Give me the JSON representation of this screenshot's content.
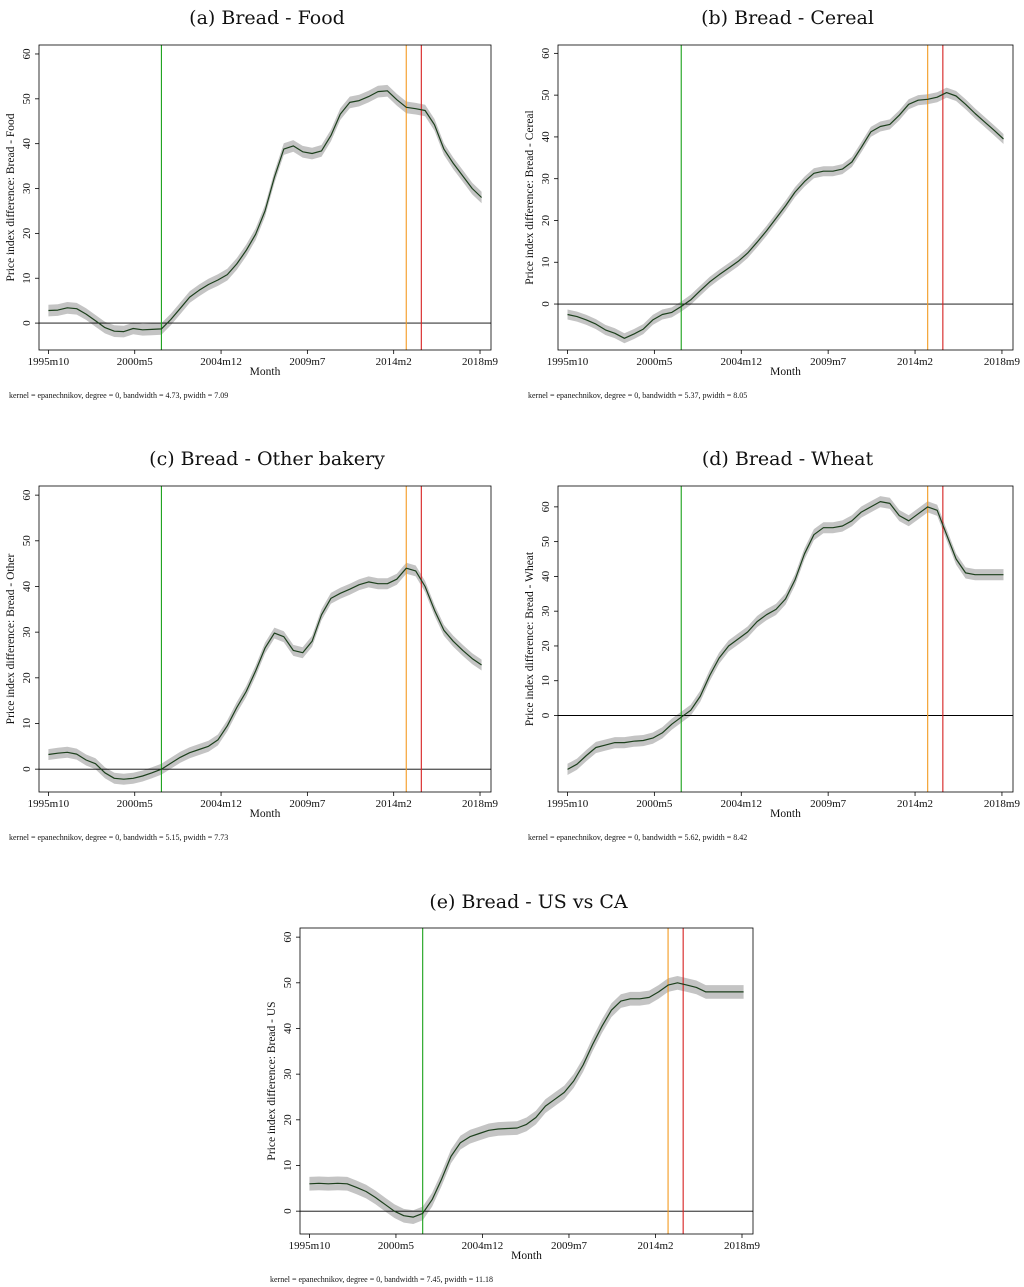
{
  "colors": {
    "green_line": "#1aa11a",
    "orange_line": "#f39a21",
    "red_line": "#d62020",
    "ci_band": "#c4c4c4",
    "series_line": "#1c3f1c"
  },
  "chart_data": [
    {
      "type": "line",
      "title": "(a) Bread - Food",
      "xlabel": "Month",
      "ylabel": "Price index difference: Bread - Food",
      "note": "kernel = epanechnikov, degree = 0, bandwidth = 4.73, pwidth = 7.09",
      "x_tick_labels": [
        "1995m10",
        "2000m5",
        "2004m12",
        "2009m7",
        "2014m2",
        "2018m9"
      ],
      "x_tick_values": [
        1995.75,
        2000.333,
        2004.917,
        2009.5,
        2014.083,
        2018.667
      ],
      "y_ticks": [
        0,
        10,
        20,
        30,
        40,
        50,
        60
      ],
      "xlim": [
        1995.25,
        2019.25
      ],
      "ylim": [
        -6,
        62
      ],
      "vlines": [
        {
          "x": 2001.75,
          "color": "green"
        },
        {
          "x": 2014.75,
          "color": "orange"
        },
        {
          "x": 2015.55,
          "color": "red"
        }
      ],
      "ci_halfwidth": 1.3,
      "x": [
        1995.75,
        1996.25,
        1996.75,
        1997.25,
        1997.75,
        1998.25,
        1998.75,
        1999.25,
        1999.75,
        2000.25,
        2000.75,
        2001.25,
        2001.75,
        2002.25,
        2002.75,
        2003.25,
        2003.75,
        2004.25,
        2004.75,
        2005.25,
        2005.75,
        2006.25,
        2006.75,
        2007.25,
        2007.75,
        2008.25,
        2008.75,
        2009.25,
        2009.75,
        2010.25,
        2010.75,
        2011.25,
        2011.75,
        2012.25,
        2012.75,
        2013.25,
        2013.75,
        2014.25,
        2014.75,
        2015.25,
        2015.75,
        2016.25,
        2016.75,
        2017.25,
        2017.75,
        2018.25,
        2018.75
      ],
      "y": [
        2.8,
        2.9,
        3.4,
        3.2,
        2.0,
        0.5,
        -1.0,
        -1.8,
        -1.9,
        -1.2,
        -1.5,
        -1.4,
        -1.3,
        0.8,
        3.3,
        5.8,
        7.3,
        8.6,
        9.6,
        10.8,
        13.2,
        16.2,
        19.8,
        25.0,
        32.5,
        38.8,
        39.5,
        38.2,
        37.8,
        38.4,
        41.8,
        46.6,
        49.2,
        49.6,
        50.5,
        51.6,
        51.8,
        49.8,
        48.1,
        47.8,
        47.4,
        44.2,
        38.8,
        35.6,
        32.8,
        30.0,
        28.0
      ]
    },
    {
      "type": "line",
      "title": "(b) Bread - Cereal",
      "xlabel": "Month",
      "ylabel": "Price index difference: Bread - Cereal",
      "note": "kernel = epanechnikov, degree = 0, bandwidth = 5.37, pwidth = 8.05",
      "x_tick_labels": [
        "1995m10",
        "2000m5",
        "2004m12",
        "2009m7",
        "2014m2",
        "2018m9"
      ],
      "x_tick_values": [
        1995.75,
        2000.333,
        2004.917,
        2009.5,
        2014.083,
        2018.667
      ],
      "y_ticks": [
        0,
        10,
        20,
        30,
        40,
        50,
        60
      ],
      "xlim": [
        1995.25,
        2019.25
      ],
      "ylim": [
        -11,
        62
      ],
      "vlines": [
        {
          "x": 2001.75,
          "color": "green"
        },
        {
          "x": 2014.75,
          "color": "orange"
        },
        {
          "x": 2015.55,
          "color": "red"
        }
      ],
      "ci_halfwidth": 1.2,
      "x": [
        1995.75,
        1996.25,
        1996.75,
        1997.25,
        1997.75,
        1998.25,
        1998.75,
        1999.25,
        1999.75,
        2000.25,
        2000.75,
        2001.25,
        2001.75,
        2002.25,
        2002.75,
        2003.25,
        2003.75,
        2004.25,
        2004.75,
        2005.25,
        2005.75,
        2006.25,
        2006.75,
        2007.25,
        2007.75,
        2008.25,
        2008.75,
        2009.25,
        2009.75,
        2010.25,
        2010.75,
        2011.25,
        2011.75,
        2012.25,
        2012.75,
        2013.25,
        2013.75,
        2014.25,
        2014.75,
        2015.25,
        2015.75,
        2016.25,
        2016.75,
        2017.25,
        2017.75,
        2018.25,
        2018.75
      ],
      "y": [
        -2.5,
        -3.0,
        -3.8,
        -4.8,
        -6.2,
        -7.0,
        -8.2,
        -7.2,
        -6.0,
        -3.8,
        -2.5,
        -2.0,
        -0.6,
        1.0,
        3.2,
        5.3,
        7.0,
        8.6,
        10.2,
        12.2,
        14.8,
        17.5,
        20.5,
        23.5,
        26.8,
        29.3,
        31.3,
        31.8,
        31.8,
        32.3,
        34.0,
        37.5,
        41.2,
        42.5,
        43.0,
        45.2,
        47.8,
        48.8,
        49.0,
        49.5,
        50.6,
        49.8,
        47.8,
        45.6,
        43.6,
        41.6,
        39.5
      ]
    },
    {
      "type": "line",
      "title": "(c) Bread - Other bakery",
      "xlabel": "Month",
      "ylabel": "Price index difference: Bread - Other",
      "note": "kernel = epanechnikov, degree = 0, bandwidth = 5.15, pwidth = 7.73",
      "x_tick_labels": [
        "1995m10",
        "2000m5",
        "2004m12",
        "2009m7",
        "2014m2",
        "2018m9"
      ],
      "x_tick_values": [
        1995.75,
        2000.333,
        2004.917,
        2009.5,
        2014.083,
        2018.667
      ],
      "y_ticks": [
        0,
        10,
        20,
        30,
        40,
        50,
        60
      ],
      "xlim": [
        1995.25,
        2019.25
      ],
      "ylim": [
        -5,
        62
      ],
      "vlines": [
        {
          "x": 2001.75,
          "color": "green"
        },
        {
          "x": 2014.75,
          "color": "orange"
        },
        {
          "x": 2015.55,
          "color": "red"
        }
      ],
      "ci_halfwidth": 1.2,
      "x": [
        1995.75,
        1996.25,
        1996.75,
        1997.25,
        1997.75,
        1998.25,
        1998.75,
        1999.25,
        1999.75,
        2000.25,
        2000.75,
        2001.25,
        2001.75,
        2002.25,
        2002.75,
        2003.25,
        2003.75,
        2004.25,
        2004.75,
        2005.25,
        2005.75,
        2006.25,
        2006.75,
        2007.25,
        2007.75,
        2008.25,
        2008.75,
        2009.25,
        2009.75,
        2010.25,
        2010.75,
        2011.25,
        2011.75,
        2012.25,
        2012.75,
        2013.25,
        2013.75,
        2014.25,
        2014.75,
        2015.25,
        2015.75,
        2016.25,
        2016.75,
        2017.25,
        2017.75,
        2018.25,
        2018.75
      ],
      "y": [
        3.2,
        3.5,
        3.7,
        3.3,
        2.0,
        1.2,
        -0.8,
        -2.0,
        -2.2,
        -2.0,
        -1.5,
        -0.8,
        0.0,
        1.3,
        2.6,
        3.6,
        4.3,
        5.0,
        6.4,
        9.5,
        13.5,
        17.0,
        21.5,
        26.5,
        29.8,
        29.0,
        26.0,
        25.5,
        28.0,
        33.8,
        37.4,
        38.5,
        39.4,
        40.4,
        41.0,
        40.6,
        40.6,
        41.6,
        44.0,
        43.4,
        40.0,
        34.8,
        30.4,
        28.0,
        26.0,
        24.2,
        22.8
      ]
    },
    {
      "type": "line",
      "title": "(d) Bread - Wheat",
      "xlabel": "Month",
      "ylabel": "Price index difference: Bread - Wheat",
      "note": "kernel = epanechnikov, degree = 0, bandwidth = 5.62, pwidth = 8.42",
      "x_tick_labels": [
        "1995m10",
        "2000m5",
        "2004m12",
        "2009m7",
        "2014m2",
        "2018m9"
      ],
      "x_tick_values": [
        1995.75,
        2000.333,
        2004.917,
        2009.5,
        2014.083,
        2018.667
      ],
      "y_ticks": [
        0,
        10,
        20,
        30,
        40,
        50,
        60
      ],
      "xlim": [
        1995.25,
        2019.25
      ],
      "ylim": [
        -22,
        66
      ],
      "vlines": [
        {
          "x": 2001.75,
          "color": "green"
        },
        {
          "x": 2014.75,
          "color": "orange"
        },
        {
          "x": 2015.55,
          "color": "red"
        }
      ],
      "ci_halfwidth": 1.6,
      "x": [
        1995.75,
        1996.25,
        1996.75,
        1997.25,
        1997.75,
        1998.25,
        1998.75,
        1999.25,
        1999.75,
        2000.25,
        2000.75,
        2001.25,
        2001.75,
        2002.25,
        2002.75,
        2003.25,
        2003.75,
        2004.25,
        2004.75,
        2005.25,
        2005.75,
        2006.25,
        2006.75,
        2007.25,
        2007.75,
        2008.25,
        2008.75,
        2009.25,
        2009.75,
        2010.25,
        2010.75,
        2011.25,
        2011.75,
        2012.25,
        2012.75,
        2013.25,
        2013.75,
        2014.25,
        2014.75,
        2015.25,
        2015.75,
        2016.25,
        2016.75,
        2017.25,
        2017.75,
        2018.25,
        2018.75
      ],
      "y": [
        -15.5,
        -14.0,
        -11.5,
        -9.2,
        -8.5,
        -7.8,
        -7.8,
        -7.4,
        -7.2,
        -6.5,
        -5.0,
        -2.5,
        -0.5,
        1.5,
        5.5,
        11.5,
        16.5,
        20.0,
        22.0,
        24.0,
        27.0,
        29.0,
        30.5,
        33.5,
        39.0,
        46.5,
        52.0,
        54.0,
        54.0,
        54.5,
        56.0,
        58.5,
        60.0,
        61.5,
        61.0,
        57.5,
        56.0,
        58.0,
        60.0,
        59.0,
        52.0,
        45.0,
        41.0,
        40.5,
        40.5,
        40.5,
        40.5
      ]
    },
    {
      "type": "line",
      "title": "(e) Bread - US vs CA",
      "xlabel": "Month",
      "ylabel": "Price index difference: Bread - US",
      "note": "kernel = epanechnikov, degree = 0, bandwidth = 7.45, pwidth = 11.18",
      "x_tick_labels": [
        "1995m10",
        "2000m5",
        "2004m12",
        "2009m7",
        "2014m2",
        "2018m9"
      ],
      "x_tick_values": [
        1995.75,
        2000.333,
        2004.917,
        2009.5,
        2014.083,
        2018.667
      ],
      "y_ticks": [
        0,
        10,
        20,
        30,
        40,
        50,
        60
      ],
      "xlim": [
        1995.25,
        2019.25
      ],
      "ylim": [
        -5,
        62
      ],
      "vlines": [
        {
          "x": 2001.75,
          "color": "green"
        },
        {
          "x": 2014.75,
          "color": "orange"
        },
        {
          "x": 2015.55,
          "color": "red"
        }
      ],
      "ci_halfwidth": 1.5,
      "x": [
        1995.75,
        1996.25,
        1996.75,
        1997.25,
        1997.75,
        1998.25,
        1998.75,
        1999.25,
        1999.75,
        2000.25,
        2000.75,
        2001.25,
        2001.75,
        2002.25,
        2002.75,
        2003.25,
        2003.75,
        2004.25,
        2004.75,
        2005.25,
        2005.75,
        2006.25,
        2006.75,
        2007.25,
        2007.75,
        2008.25,
        2008.75,
        2009.25,
        2009.75,
        2010.25,
        2010.75,
        2011.25,
        2011.75,
        2012.25,
        2012.75,
        2013.25,
        2013.75,
        2014.25,
        2014.75,
        2015.25,
        2015.75,
        2016.25,
        2016.75,
        2017.25,
        2017.75,
        2018.25,
        2018.75
      ],
      "y": [
        6.0,
        6.1,
        6.0,
        6.1,
        6.0,
        5.2,
        4.3,
        3.0,
        1.5,
        0.0,
        -1.0,
        -1.3,
        -0.5,
        2.5,
        7.0,
        12.0,
        15.0,
        16.3,
        17.0,
        17.7,
        18.0,
        18.1,
        18.2,
        19.0,
        20.5,
        23.0,
        24.5,
        26.0,
        28.5,
        32.0,
        36.5,
        40.5,
        44.0,
        46.0,
        46.5,
        46.5,
        46.8,
        48.0,
        49.5,
        50.0,
        49.5,
        49.0,
        48.0,
        48.0,
        48.0,
        48.0,
        48.0
      ]
    }
  ]
}
